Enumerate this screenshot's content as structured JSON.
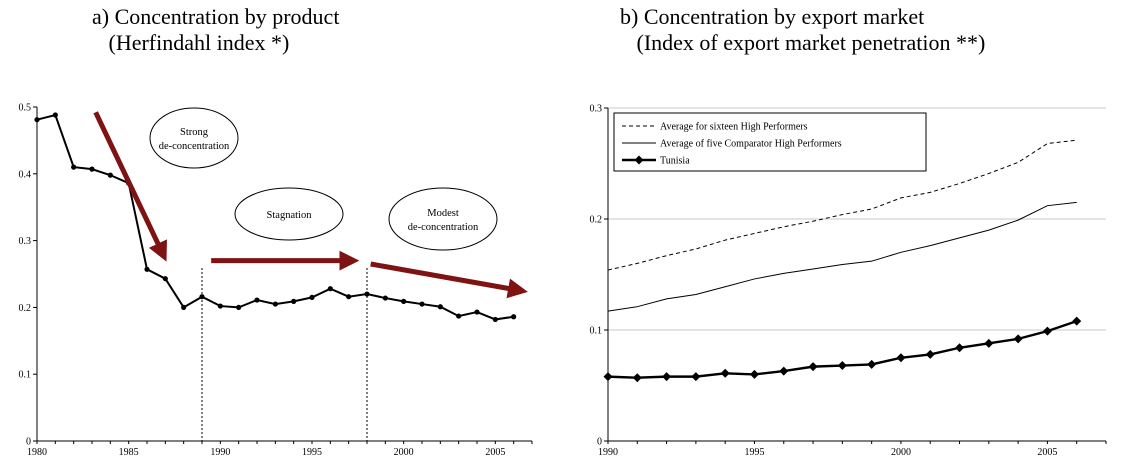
{
  "chart_data": [
    {
      "type": "line",
      "title": "a) Concentration by product",
      "subtitle": "(Herfindahl index *)",
      "x": [
        1980,
        1981,
        1982,
        1983,
        1984,
        1985,
        1986,
        1987,
        1988,
        1989,
        1990,
        1991,
        1992,
        1993,
        1994,
        1995,
        1996,
        1997,
        1998,
        1999,
        2000,
        2001,
        2002,
        2003,
        2004,
        2005,
        2006
      ],
      "series": [
        {
          "values": [
            0.481,
            0.488,
            0.41,
            0.407,
            0.398,
            0.386,
            0.257,
            0.243,
            0.2,
            0.216,
            0.202,
            0.2,
            0.211,
            0.205,
            0.209,
            0.215,
            0.228,
            0.216,
            0.22,
            0.214,
            0.209,
            0.205,
            0.201,
            0.187,
            0.193,
            0.182,
            0.186
          ]
        }
      ],
      "xlim": [
        1980,
        2007
      ],
      "ylim": [
        0,
        0.5
      ],
      "xticks": [
        "1980",
        "1985",
        "1990",
        "1995",
        "2000",
        "2005"
      ],
      "yticks": [
        "0",
        "0.1",
        "0.2",
        "0.3",
        "0.4",
        "0.5"
      ],
      "vlines": [
        1989,
        1998
      ],
      "annotations": [
        {
          "lines": [
            "Strong",
            "de-concentration"
          ]
        },
        {
          "lines": [
            "Stagnation"
          ]
        },
        {
          "lines": [
            "Modest",
            "de-concentration"
          ]
        }
      ],
      "arrow_color": "#7f1212"
    },
    {
      "type": "line",
      "title": "b) Concentration by export market",
      "subtitle": "(Index of export market penetration **)",
      "x": [
        1990,
        1991,
        1992,
        1993,
        1994,
        1995,
        1996,
        1997,
        1998,
        1999,
        2000,
        2001,
        2002,
        2003,
        2004,
        2005,
        2006
      ],
      "series": [
        {
          "name": "Average for sixteen High Performers",
          "style": "dashed",
          "values": [
            0.154,
            0.16,
            0.167,
            0.173,
            0.181,
            0.187,
            0.193,
            0.198,
            0.204,
            0.209,
            0.219,
            0.224,
            0.232,
            0.241,
            0.251,
            0.268,
            0.271
          ]
        },
        {
          "name": "Average of five Comparator High Performers",
          "style": "solid",
          "values": [
            0.117,
            0.121,
            0.128,
            0.132,
            0.139,
            0.146,
            0.151,
            0.155,
            0.159,
            0.162,
            0.17,
            0.176,
            0.183,
            0.19,
            0.199,
            0.212,
            0.215
          ]
        },
        {
          "name": "Tunisia",
          "style": "bold-diamond",
          "values": [
            0.058,
            0.057,
            0.058,
            0.058,
            0.061,
            0.06,
            0.063,
            0.067,
            0.068,
            0.069,
            0.075,
            0.078,
            0.084,
            0.088,
            0.092,
            0.099,
            0.108
          ]
        }
      ],
      "xlim": [
        1990,
        2007
      ],
      "ylim": [
        0,
        0.3
      ],
      "xticks": [
        "1990",
        "1995",
        "2000",
        "2005"
      ],
      "yticks": [
        "0",
        "0.1",
        "0.2",
        "0.3"
      ],
      "legend_position": "top-left"
    }
  ]
}
